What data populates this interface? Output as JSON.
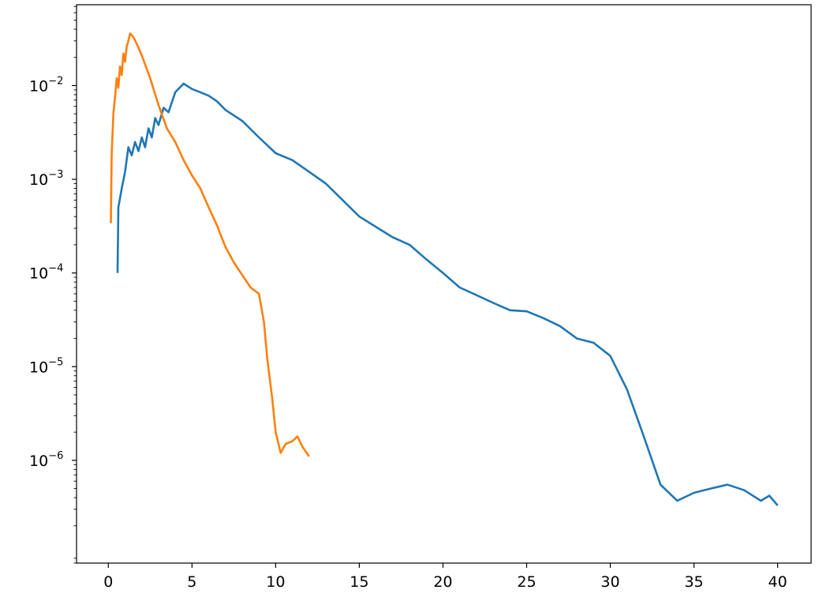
{
  "chart_data": {
    "type": "line",
    "title": "",
    "xlabel": "",
    "ylabel": "",
    "xlim": [
      -1.9,
      42.0
    ],
    "ylim": [
      8e-08,
      0.073
    ],
    "yscale": "log",
    "grid": false,
    "x_ticks": [
      {
        "value": 0,
        "label": "0"
      },
      {
        "value": 5,
        "label": "5"
      },
      {
        "value": 10,
        "label": "10"
      },
      {
        "value": 15,
        "label": "15"
      },
      {
        "value": 20,
        "label": "20"
      },
      {
        "value": 25,
        "label": "25"
      },
      {
        "value": 30,
        "label": "30"
      },
      {
        "value": 35,
        "label": "35"
      },
      {
        "value": 40,
        "label": "40"
      }
    ],
    "y_ticks": [
      {
        "value": 0.01,
        "base": "10",
        "exp": "−2"
      },
      {
        "value": 0.001,
        "base": "10",
        "exp": "−3"
      },
      {
        "value": 0.0001,
        "base": "10",
        "exp": "−4"
      },
      {
        "value": 1e-05,
        "base": "10",
        "exp": "−5"
      },
      {
        "value": 1e-06,
        "base": "10",
        "exp": "−6"
      }
    ],
    "series": [
      {
        "color": "#1f77b4",
        "points": [
          [
            0.55,
            0.0001
          ],
          [
            0.6,
            0.0005
          ],
          [
            0.8,
            0.0008
          ],
          [
            1.0,
            0.0012
          ],
          [
            1.2,
            0.0022
          ],
          [
            1.4,
            0.0018
          ],
          [
            1.6,
            0.0025
          ],
          [
            1.8,
            0.002
          ],
          [
            2.0,
            0.0028
          ],
          [
            2.2,
            0.0022
          ],
          [
            2.4,
            0.0035
          ],
          [
            2.6,
            0.0028
          ],
          [
            2.8,
            0.0045
          ],
          [
            3.0,
            0.0038
          ],
          [
            3.3,
            0.0058
          ],
          [
            3.6,
            0.0052
          ],
          [
            4.0,
            0.0085
          ],
          [
            4.5,
            0.0105
          ],
          [
            5.0,
            0.0092
          ],
          [
            5.5,
            0.0085
          ],
          [
            6.0,
            0.0078
          ],
          [
            6.5,
            0.0068
          ],
          [
            7.0,
            0.0055
          ],
          [
            8.0,
            0.0042
          ],
          [
            9.0,
            0.0028
          ],
          [
            10.0,
            0.0019
          ],
          [
            11.0,
            0.0016
          ],
          [
            12.0,
            0.0012
          ],
          [
            13.0,
            0.0009
          ],
          [
            14.0,
            0.0006
          ],
          [
            15.0,
            0.0004
          ],
          [
            16.0,
            0.00031
          ],
          [
            17.0,
            0.00024
          ],
          [
            18.0,
            0.0002
          ],
          [
            19.0,
            0.00014
          ],
          [
            20.0,
            0.0001
          ],
          [
            21.0,
            7e-05
          ],
          [
            22.0,
            5.8e-05
          ],
          [
            23.0,
            4.8e-05
          ],
          [
            24.0,
            4e-05
          ],
          [
            25.0,
            3.9e-05
          ],
          [
            26.0,
            3.3e-05
          ],
          [
            27.0,
            2.7e-05
          ],
          [
            28.0,
            2e-05
          ],
          [
            29.0,
            1.8e-05
          ],
          [
            30.0,
            1.3e-05
          ],
          [
            31.0,
            5.7e-06
          ],
          [
            32.0,
            1.8e-06
          ],
          [
            33.0,
            5.5e-07
          ],
          [
            34.0,
            3.7e-07
          ],
          [
            35.0,
            4.5e-07
          ],
          [
            36.0,
            5e-07
          ],
          [
            37.0,
            5.5e-07
          ],
          [
            38.0,
            4.8e-07
          ],
          [
            39.0,
            3.7e-07
          ],
          [
            39.5,
            4.2e-07
          ],
          [
            40.0,
            3.3e-07
          ]
        ]
      },
      {
        "color": "#ff7f0e",
        "points": [
          [
            0.15,
            0.00034
          ],
          [
            0.2,
            0.0018
          ],
          [
            0.3,
            0.005
          ],
          [
            0.4,
            0.0075
          ],
          [
            0.5,
            0.012
          ],
          [
            0.6,
            0.0095
          ],
          [
            0.7,
            0.016
          ],
          [
            0.8,
            0.013
          ],
          [
            0.9,
            0.022
          ],
          [
            1.0,
            0.018
          ],
          [
            1.1,
            0.026
          ],
          [
            1.2,
            0.03
          ],
          [
            1.3,
            0.036
          ],
          [
            1.5,
            0.033
          ],
          [
            1.7,
            0.028
          ],
          [
            2.0,
            0.021
          ],
          [
            2.5,
            0.012
          ],
          [
            3.0,
            0.0062
          ],
          [
            3.5,
            0.0035
          ],
          [
            4.0,
            0.0025
          ],
          [
            4.5,
            0.0016
          ],
          [
            5.0,
            0.0011
          ],
          [
            5.5,
            0.0008
          ],
          [
            6.0,
            0.0005
          ],
          [
            6.5,
            0.00032
          ],
          [
            7.0,
            0.00019
          ],
          [
            7.5,
            0.00013
          ],
          [
            8.0,
            9.5e-05
          ],
          [
            8.5,
            7e-05
          ],
          [
            9.0,
            6e-05
          ],
          [
            9.3,
            3e-05
          ],
          [
            9.5,
            1.2e-05
          ],
          [
            9.8,
            4.5e-06
          ],
          [
            10.0,
            2e-06
          ],
          [
            10.3,
            1.2e-06
          ],
          [
            10.6,
            1.5e-06
          ],
          [
            11.0,
            1.6e-06
          ],
          [
            11.3,
            1.8e-06
          ],
          [
            11.6,
            1.4e-06
          ],
          [
            12.0,
            1.1e-06
          ]
        ]
      }
    ]
  }
}
